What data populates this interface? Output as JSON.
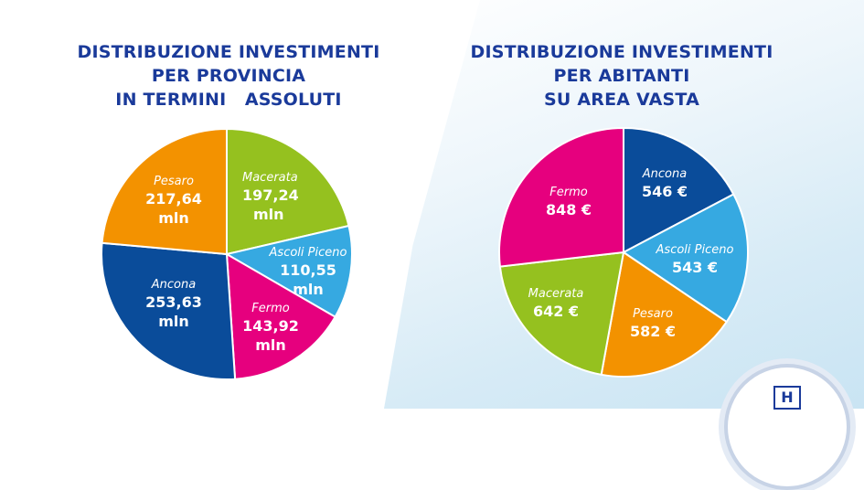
{
  "chart_data": [
    {
      "type": "pie",
      "title_lines": [
        "DISTRIBUZIONE INVESTIMENTI",
        "PER PROVINCIA",
        "IN TERMINI   ASSOLUTI"
      ],
      "slices": [
        {
          "name": "Macerata",
          "value": 197.24,
          "value_label": "197,24",
          "unit": "mln",
          "color": "#95c11f"
        },
        {
          "name": "Ascoli Piceno",
          "value": 110.55,
          "value_label": "110,55",
          "unit": "mln",
          "color": "#36a9e1"
        },
        {
          "name": "Fermo",
          "value": 143.92,
          "value_label": "143,92",
          "unit": "mln",
          "color": "#e6007e"
        },
        {
          "name": "Ancona",
          "value": 253.63,
          "value_label": "253,63",
          "unit": "mln",
          "color": "#0a4c9a"
        },
        {
          "name": "Pesaro",
          "value": 217.64,
          "value_label": "217,64",
          "unit": "mln",
          "color": "#f39200"
        }
      ]
    },
    {
      "type": "pie",
      "title_lines": [
        "DISTRIBUZIONE INVESTIMENTI",
        "PER ABITANTI",
        "SU AREA VASTA"
      ],
      "slices": [
        {
          "name": "Ancona",
          "value": 546,
          "value_label": "546 €",
          "color": "#0a4c9a"
        },
        {
          "name": "Ascoli Piceno",
          "value": 543,
          "value_label": "543 €",
          "color": "#36a9e1"
        },
        {
          "name": "Pesaro",
          "value": 582,
          "value_label": "582 €",
          "color": "#f39200"
        },
        {
          "name": "Macerata",
          "value": 642,
          "value_label": "642 €",
          "color": "#95c11f"
        },
        {
          "name": "Fermo",
          "value": 848,
          "value_label": "848 €",
          "color": "#e6007e"
        }
      ]
    }
  ],
  "logo": {
    "letter": "H"
  }
}
